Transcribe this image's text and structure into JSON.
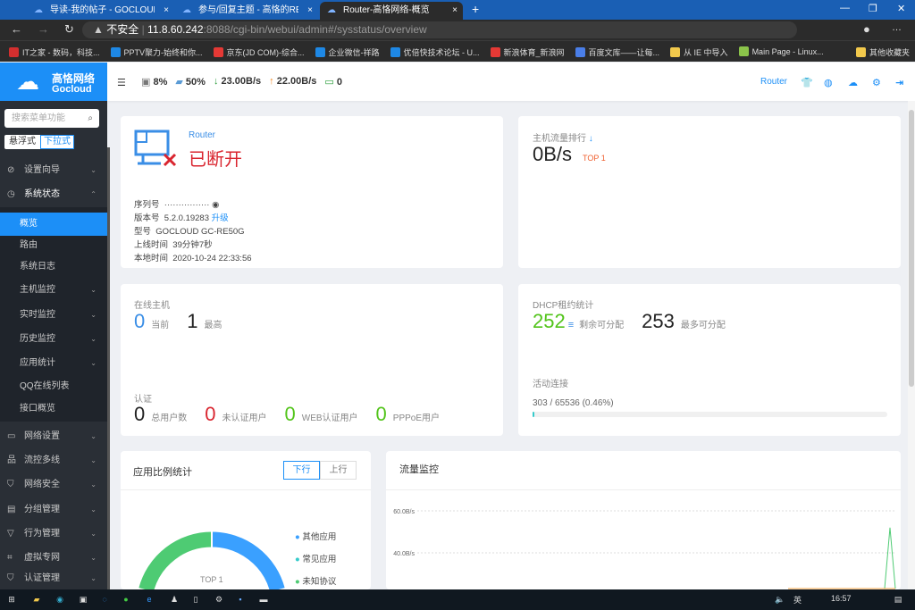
{
  "browser": {
    "tabs": [
      {
        "label": "导读-我的帖子 - GOCLOUD高恪网"
      },
      {
        "label": "参与/回复主题 - 高恪的RE50G实"
      },
      {
        "label": "Router-高恪网络-概览",
        "active": true
      }
    ],
    "security_warning": "不安全",
    "url_host": "11.8.60.242",
    "url_rest": ":8088/cgi-bin/webui/admin#/sysstatus/overview",
    "bookmarks": [
      {
        "label": "IT之家 - 数码，科技...",
        "color": "#d32f2f"
      },
      {
        "label": "PPTV聚力-始终和你...",
        "color": "#1e88e5"
      },
      {
        "label": "京东(JD COM)-综合...",
        "color": "#e53935"
      },
      {
        "label": "企业微信-祥路",
        "color": "#1e88e5"
      },
      {
        "label": "优倍快技术论坛 - U...",
        "color": "#1e88e5"
      },
      {
        "label": "新浪体育_新浪网",
        "color": "#e53935"
      },
      {
        "label": "百度文库——让每...",
        "color": "#4a7ee8"
      },
      {
        "label": "从 IE 中导入",
        "color": "#f2c94c"
      },
      {
        "label": "Main Page - Linux...",
        "color": "#8bc34a"
      }
    ],
    "other_bookmarks": "其他收藏夹"
  },
  "logo": {
    "cn": "高恪网络",
    "en": "Gocloud"
  },
  "header": {
    "cpu": "8%",
    "mem": "50%",
    "down": "23.00B/s",
    "up": "22.00B/s",
    "hosts": "0",
    "router_link": "Router"
  },
  "sidebar": {
    "search_placeholder": "搜索菜单功能",
    "mode_float": "悬浮式",
    "mode_dropdown": "下拉式",
    "items": [
      {
        "label": "设置向导",
        "icon": "compass-icon"
      },
      {
        "label": "系统状态",
        "icon": "gauge-icon",
        "expanded": true
      }
    ],
    "sub_items": [
      {
        "label": "概览",
        "active": true
      },
      {
        "label": "路由"
      },
      {
        "label": "系统日志"
      },
      {
        "label": "主机监控",
        "chev": true
      },
      {
        "label": "实时监控",
        "chev": true
      },
      {
        "label": "历史监控",
        "chev": true
      },
      {
        "label": "应用统计",
        "chev": true
      },
      {
        "label": "QQ在线列表"
      },
      {
        "label": "接口概览"
      }
    ],
    "groups": [
      {
        "label": "网络设置",
        "icon": "monitor-icon"
      },
      {
        "label": "流控多线",
        "icon": "network-icon"
      },
      {
        "label": "网络安全",
        "icon": "shield-icon"
      },
      {
        "label": "分组管理",
        "icon": "group-icon"
      },
      {
        "label": "行为管理",
        "icon": "filter-icon"
      },
      {
        "label": "虚拟专网",
        "icon": "vpn-icon"
      },
      {
        "label": "认证管理",
        "icon": "check-shield-icon"
      }
    ]
  },
  "device": {
    "name": "Router",
    "status": "已断开",
    "status_color": "#d9252f",
    "serial_label": "序列号",
    "serial": "················",
    "version_label": "版本号",
    "version": "5.2.0.19283",
    "upgrade": "升级",
    "model_label": "型号",
    "model": "GOCLOUD GC-RE50G",
    "uptime_label": "上线时间",
    "uptime": "39分钟7秒",
    "time_label": "本地时间",
    "time": "2020-10-24 22:33:56"
  },
  "host_rank": {
    "title": "主机流量排行",
    "value": "0B/s",
    "badge": "TOP 1"
  },
  "online": {
    "title": "在线主机",
    "current": "0",
    "current_label": "当前",
    "max": "1",
    "max_label": "最高"
  },
  "auth": {
    "title": "认证",
    "total": "0",
    "total_label": "总用户数",
    "unauth": "0",
    "unauth_label": "未认证用户",
    "web": "0",
    "web_label": "WEB认证用户",
    "pppoe": "0",
    "pppoe_label": "PPPoE用户"
  },
  "dhcp": {
    "title": "DHCP租约统计",
    "remain": "252",
    "remain_label": "剩余可分配",
    "max": "253",
    "max_label": "最多可分配"
  },
  "conn": {
    "title": "活动连接",
    "text": "303 / 65536 (0.46%)",
    "fraction": 0.0046
  },
  "app_ratio": {
    "title": "应用比例统计",
    "tab_down": "下行",
    "tab_up": "上行",
    "center": "TOP 1",
    "slices": [
      {
        "name": "其他应用",
        "color": "#3aa0ff",
        "value": 0.67
      },
      {
        "name": "常见应用",
        "color": "#36cbcb",
        "value": 0.04
      },
      {
        "name": "未知协议",
        "color": "#4ecb73",
        "value": 0.29
      }
    ]
  },
  "chart_data": {
    "type": "line",
    "title": "流量监控",
    "yticks": [
      "60.0B/s",
      "40.0B/s"
    ],
    "ylim": [
      0,
      70
    ],
    "series": [
      {
        "color": "#4ecb73",
        "values": [
          0,
          0,
          0,
          0,
          0,
          0,
          0,
          0,
          0,
          0,
          0,
          0,
          0,
          0,
          0,
          0,
          0,
          0,
          0,
          52,
          0
        ]
      },
      {
        "color": "#f0a040",
        "values": [
          0,
          0,
          0,
          0,
          0,
          0,
          0,
          0,
          0,
          0,
          0,
          0,
          0,
          0,
          0,
          0,
          0,
          0,
          0,
          22,
          0
        ]
      }
    ]
  },
  "taskbar": {
    "ime": "英",
    "time": "16:57"
  }
}
